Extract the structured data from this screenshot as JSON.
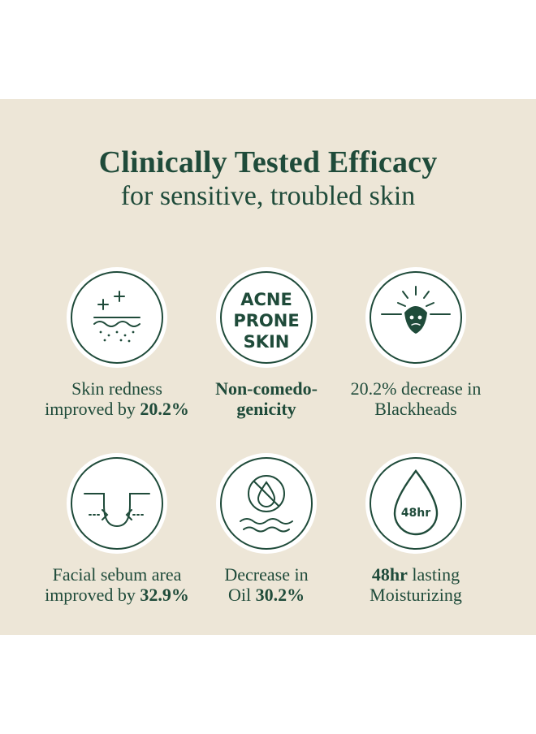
{
  "header": {
    "title": "Clinically Tested Efficacy",
    "subtitle": "for sensitive, troubled skin"
  },
  "items": [
    {
      "icon": "skin-redness-icon",
      "line1": "Skin redness",
      "line2_prefix": "improved by ",
      "line2_bold": "20.2%"
    },
    {
      "icon": "acne-prone-skin-badge",
      "badge_lines": [
        "ACNE",
        "PRONE",
        "SKIN"
      ],
      "line1_bold": "Non-comedo-",
      "line2_bold": "genicity"
    },
    {
      "icon": "blackhead-icon",
      "line1": "20.2% decrease in",
      "line2": "Blackheads"
    },
    {
      "icon": "pore-sebum-icon",
      "line1": "Facial sebum area",
      "line2_prefix": "improved by ",
      "line2_bold": "32.9%"
    },
    {
      "icon": "no-oil-drop-icon",
      "line1": "Decrease in",
      "line2_prefix": "Oil ",
      "line2_bold": "30.2%"
    },
    {
      "icon": "moisture-drop-icon",
      "drop_label": "48hr",
      "line1_bold": "48hr",
      "line1_suffix": " lasting",
      "line2": "Moisturizing"
    }
  ],
  "colors": {
    "background": "#ede6d7",
    "accent": "#1f4b3a",
    "circle": "#ffffff"
  }
}
